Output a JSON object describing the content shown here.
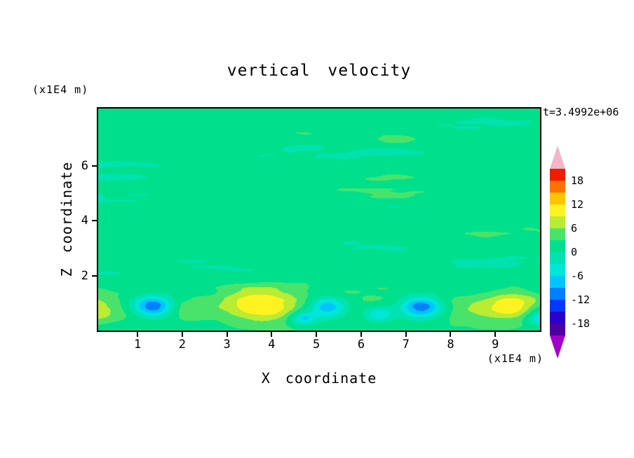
{
  "chart_data": {
    "type": "filled_contour",
    "title": "vertical velocity",
    "timestamp_label": "t=3.4992e+06",
    "xlabel": "X coordinate",
    "ylabel": "Z coordinate",
    "x_unit_label": "(x1E4 m)",
    "y_unit_label": "(x1E4 m)",
    "xlim": [
      0.12,
      10.0
    ],
    "ylim": [
      0,
      8.1
    ],
    "xticks": [
      1,
      2,
      3,
      4,
      5,
      6,
      7,
      8,
      9
    ],
    "yticks": [
      2,
      4,
      6
    ],
    "grid": false,
    "contour_interval": 3,
    "colorbar": {
      "position": "right",
      "tick_labels": [
        18,
        12,
        6,
        0,
        -6,
        -12,
        -18
      ],
      "bands": [
        {
          "min": -21,
          "max": -18,
          "color": "#4b00a0"
        },
        {
          "min": -18,
          "max": -15,
          "color": "#2a00cd"
        },
        {
          "min": -15,
          "max": -12,
          "color": "#0038ff"
        },
        {
          "min": -12,
          "max": -9,
          "color": "#0080ff"
        },
        {
          "min": -9,
          "max": -6,
          "color": "#00c6ff"
        },
        {
          "min": -6,
          "max": -3,
          "color": "#00e6d8"
        },
        {
          "min": -3,
          "max": 0,
          "color": "#00e2b0"
        },
        {
          "min": 0,
          "max": 3,
          "color": "#00e08c"
        },
        {
          "min": 3,
          "max": 6,
          "color": "#49e36b"
        },
        {
          "min": 6,
          "max": 9,
          "color": "#b9ec33"
        },
        {
          "min": 9,
          "max": 12,
          "color": "#fef320"
        },
        {
          "min": 12,
          "max": 15,
          "color": "#ffc400"
        },
        {
          "min": 15,
          "max": 18,
          "color": "#ff7100"
        },
        {
          "min": 18,
          "max": 21,
          "color": "#ef1c00"
        }
      ],
      "over_arrow_color": "#f2b6c6",
      "under_arrow_color": "#a000c8"
    },
    "field": {
      "description": "mostly near-zero green field with horizontal streaks; alternating updraft (yellow) and downdraft (cyan/blue) cells near the bottom boundary around z=1",
      "background_level": 1.3,
      "streaks": {
        "amplitude": 3.2,
        "scale_x": 0.45,
        "scale_z": 2.0,
        "octaves": 3,
        "bottom_damp_z": 1.6
      },
      "bottom_ridge": {
        "amplitude": 2.0,
        "center_z": 1.0,
        "width_z": 0.8,
        "noise_amp": 1.2
      },
      "blobs": [
        {
          "x": -0.1,
          "z": 0.85,
          "amp": 6.0,
          "sx": 0.55,
          "sz": 0.5
        },
        {
          "x": 1.35,
          "z": 0.9,
          "amp": -14.0,
          "sx": 0.45,
          "sz": 0.38
        },
        {
          "x": 2.2,
          "z": 0.7,
          "amp": 3.2,
          "sx": 0.45,
          "sz": 0.35
        },
        {
          "x": 3.75,
          "z": 0.95,
          "amp": 8.5,
          "sx": 0.8,
          "sz": 0.6
        },
        {
          "x": 4.7,
          "z": 0.45,
          "amp": -9.5,
          "sx": 0.3,
          "sz": 0.25
        },
        {
          "x": 5.25,
          "z": 0.85,
          "amp": -11.5,
          "sx": 0.45,
          "sz": 0.4
        },
        {
          "x": 6.4,
          "z": 0.6,
          "amp": -8.5,
          "sx": 0.35,
          "sz": 0.3
        },
        {
          "x": 7.35,
          "z": 0.85,
          "amp": -14.5,
          "sx": 0.5,
          "sz": 0.42
        },
        {
          "x": 8.35,
          "z": 0.8,
          "amp": 2.4,
          "sx": 0.5,
          "sz": 0.4
        },
        {
          "x": 9.3,
          "z": 0.9,
          "amp": 7.5,
          "sx": 0.62,
          "sz": 0.5
        },
        {
          "x": 10.05,
          "z": 0.5,
          "amp": -10.0,
          "sx": 0.35,
          "sz": 0.35
        }
      ]
    }
  }
}
